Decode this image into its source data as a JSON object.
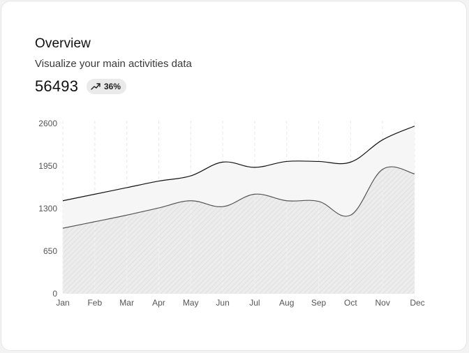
{
  "card": {
    "title": "Overview",
    "subtitle": "Visualize your main activities data",
    "metric_value": "56493",
    "change_badge": {
      "icon": "trending-up-icon",
      "text": "36%"
    }
  },
  "colors": {
    "upper_line": "#111111",
    "lower_line": "#555555",
    "upper_fill": "#f4f4f4",
    "lower_fill": "#e8e8e8",
    "grid": "#d9d9d9"
  },
  "chart_data": {
    "type": "area",
    "categories": [
      "Jan",
      "Feb",
      "Mar",
      "Apr",
      "May",
      "Jun",
      "Jul",
      "Aug",
      "Sep",
      "Oct",
      "Nov",
      "Dec"
    ],
    "series": [
      {
        "name": "upper",
        "values": [
          1420,
          1520,
          1620,
          1720,
          1800,
          2010,
          1930,
          2020,
          2020,
          2010,
          2350,
          2560
        ]
      },
      {
        "name": "lower",
        "values": [
          1000,
          1100,
          1200,
          1310,
          1420,
          1330,
          1520,
          1420,
          1410,
          1200,
          1900,
          1830
        ]
      }
    ],
    "y_ticks": [
      0,
      650,
      1300,
      1950,
      2600
    ],
    "ylim": [
      0,
      2600
    ],
    "grid": "vertical-dashed",
    "title": "",
    "xlabel": "",
    "ylabel": ""
  }
}
